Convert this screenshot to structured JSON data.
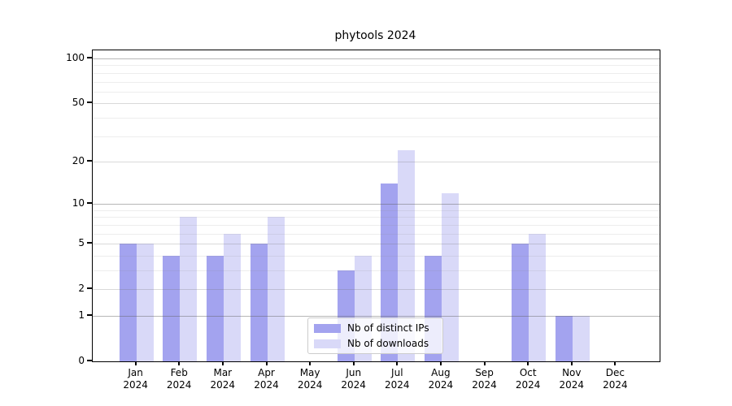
{
  "chart_data": {
    "type": "bar",
    "title": "phytools 2024",
    "categories": [
      "Jan",
      "Feb",
      "Mar",
      "Apr",
      "May",
      "Jun",
      "Jul",
      "Aug",
      "Sep",
      "Oct",
      "Nov",
      "Dec"
    ],
    "year": "2024",
    "series": [
      {
        "name": "Nb of distinct IPs",
        "color": "#a3a3ef",
        "values": [
          5,
          4,
          4,
          5,
          0,
          3,
          14,
          4,
          0,
          5,
          1,
          0
        ]
      },
      {
        "name": "Nb of downloads",
        "color": "#d9d9f8",
        "values": [
          5,
          8,
          6,
          8,
          0,
          4,
          24,
          12,
          0,
          6,
          1,
          0
        ]
      }
    ],
    "y_axis": {
      "scale": "log1p",
      "tick_labels": [
        0,
        1,
        2,
        5,
        10,
        20,
        50,
        100
      ],
      "decade_gridlines": [
        1,
        10,
        100
      ],
      "mid_gridlines": [
        2,
        5,
        20,
        50
      ],
      "minor_gridlines": [
        3,
        4,
        6,
        7,
        8,
        9,
        30,
        40,
        60,
        70,
        80,
        90
      ],
      "top_value": 100
    },
    "x_axis": {
      "label_format": "month-over-year"
    },
    "legend": {
      "items": [
        "Nb of distinct IPs",
        "Nb of downloads"
      ],
      "position": "lower-center-inside"
    },
    "grid": true,
    "colors": {
      "background": "#ffffff",
      "axis": "#000000",
      "bar_distinct_ips": "#a3a3ef",
      "bar_downloads": "#d9d9f8",
      "legend_border": "#cccccc"
    }
  }
}
